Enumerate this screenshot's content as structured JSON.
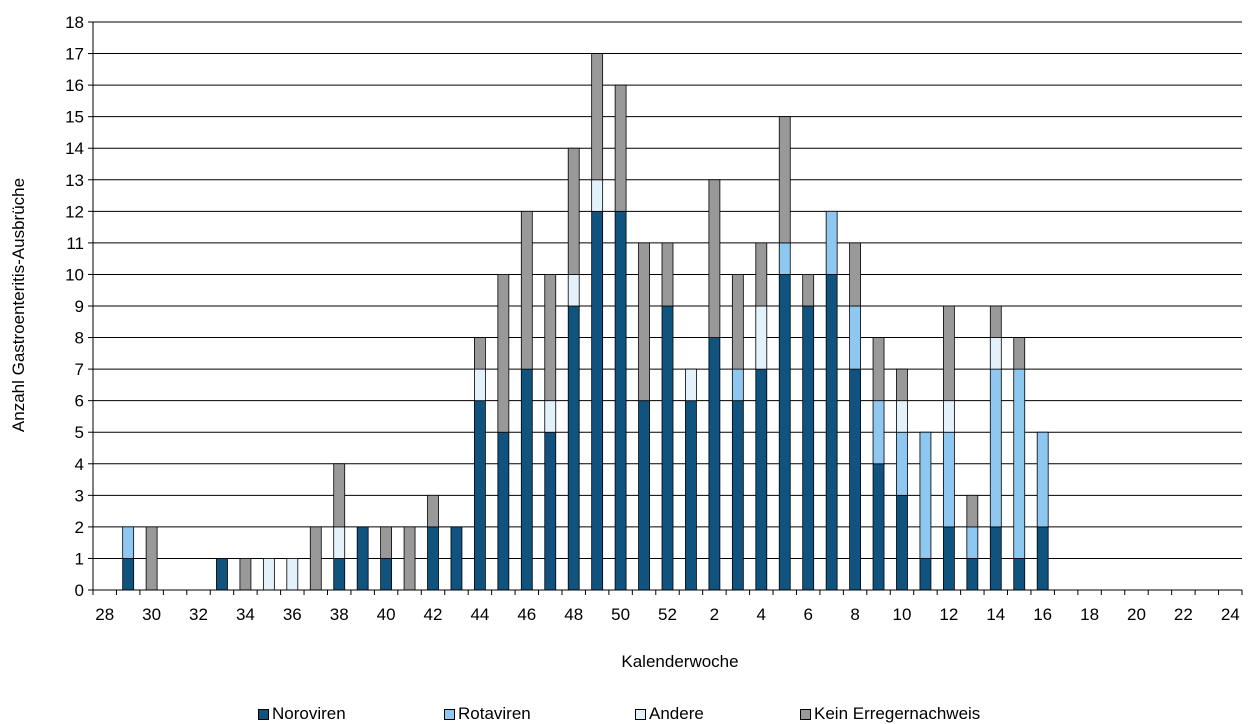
{
  "chart_data": {
    "type": "bar",
    "stacked": true,
    "xlabel": "Kalenderwoche",
    "ylabel": "Anzahl Gastroenteritis-Ausbrüche",
    "ylim": [
      0,
      18
    ],
    "yticks": [
      0,
      1,
      2,
      3,
      4,
      5,
      6,
      7,
      8,
      9,
      10,
      11,
      12,
      13,
      14,
      15,
      16,
      17,
      18
    ],
    "grid": true,
    "legend": "bottom",
    "categories": [
      "28",
      "29",
      "30",
      "31",
      "32",
      "33",
      "34",
      "35",
      "36",
      "37",
      "38",
      "39",
      "40",
      "41",
      "42",
      "43",
      "44",
      "45",
      "46",
      "47",
      "48",
      "49",
      "50",
      "51",
      "52",
      "1",
      "2",
      "3",
      "4",
      "5",
      "6",
      "7",
      "8",
      "9",
      "10",
      "11",
      "12",
      "13",
      "14",
      "15",
      "16",
      "17",
      "18",
      "19",
      "20",
      "21",
      "22",
      "23",
      "24"
    ],
    "tick_labels": [
      "28",
      "",
      "30",
      "",
      "32",
      "",
      "34",
      "",
      "36",
      "",
      "38",
      "",
      "40",
      "",
      "42",
      "",
      "44",
      "",
      "46",
      "",
      "48",
      "",
      "50",
      "",
      "52",
      "",
      "2",
      "",
      "4",
      "",
      "6",
      "",
      "8",
      "",
      "10",
      "",
      "12",
      "",
      "14",
      "",
      "16",
      "",
      "18",
      "",
      "20",
      "",
      "22",
      "",
      "24"
    ],
    "series": [
      {
        "name": "Noroviren",
        "color": "#10537f",
        "values": [
          0,
          1,
          0,
          0,
          0,
          1,
          0,
          0,
          0,
          0,
          1,
          2,
          1,
          0,
          2,
          2,
          6,
          5,
          7,
          5,
          9,
          12,
          12,
          6,
          9,
          6,
          8,
          6,
          7,
          10,
          9,
          10,
          7,
          4,
          3,
          1,
          2,
          1,
          2,
          1,
          2,
          0,
          0,
          0,
          0,
          0,
          0,
          0,
          0
        ]
      },
      {
        "name": "Rotaviren",
        "color": "#8ec8f0",
        "values": [
          0,
          1,
          0,
          0,
          0,
          0,
          0,
          0,
          0,
          0,
          0,
          0,
          0,
          0,
          0,
          0,
          0,
          0,
          0,
          0,
          0,
          0,
          0,
          0,
          0,
          0,
          0,
          1,
          0,
          1,
          0,
          2,
          2,
          2,
          2,
          4,
          3,
          1,
          5,
          6,
          3,
          0,
          0,
          0,
          0,
          0,
          0,
          0,
          0
        ]
      },
      {
        "name": "Andere",
        "color": "#e3f1fb",
        "values": [
          0,
          0,
          0,
          0,
          0,
          0,
          0,
          1,
          1,
          0,
          1,
          0,
          0,
          0,
          0,
          0,
          1,
          0,
          0,
          1,
          1,
          1,
          0,
          0,
          0,
          1,
          0,
          0,
          2,
          0,
          0,
          0,
          0,
          0,
          1,
          0,
          1,
          0,
          1,
          0,
          0,
          0,
          0,
          0,
          0,
          0,
          0,
          0,
          0
        ]
      },
      {
        "name": "Kein Erregernachweis",
        "color": "#999999",
        "values": [
          0,
          0,
          2,
          0,
          0,
          0,
          1,
          0,
          0,
          2,
          2,
          0,
          1,
          2,
          1,
          0,
          1,
          5,
          5,
          4,
          4,
          4,
          4,
          5,
          2,
          0,
          5,
          3,
          2,
          4,
          1,
          0,
          2,
          2,
          1,
          0,
          3,
          1,
          1,
          1,
          0,
          0,
          0,
          0,
          0,
          0,
          0,
          0,
          0
        ]
      }
    ]
  }
}
